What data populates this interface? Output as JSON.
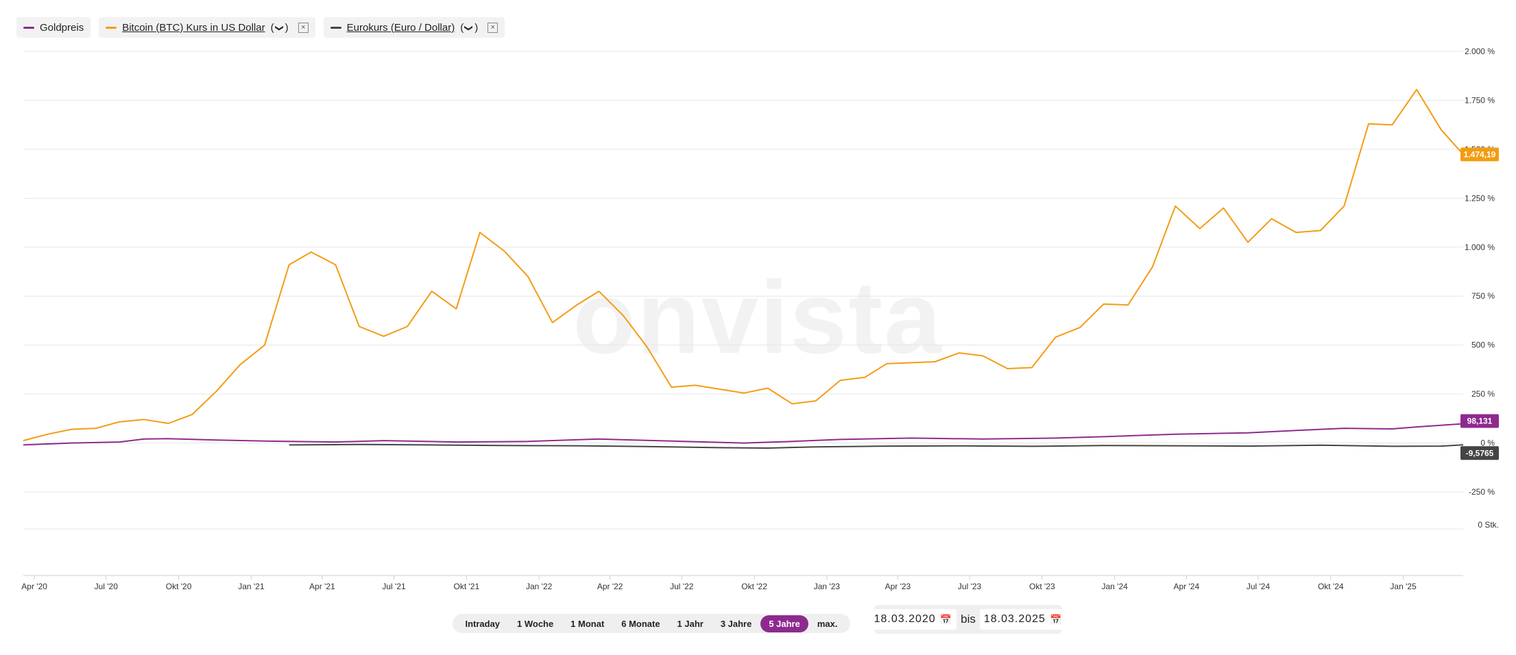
{
  "legend": [
    {
      "id": "gold",
      "label": "Goldpreis",
      "color": "#8e2a8e",
      "link": false,
      "removable": false
    },
    {
      "id": "btc",
      "label": "Bitcoin (BTC) Kurs in US Dollar",
      "color": "#f39c12",
      "link": true,
      "removable": true
    },
    {
      "id": "eur",
      "label": "Eurokurs (Euro / Dollar)",
      "color": "#444444",
      "link": true,
      "removable": true
    }
  ],
  "legend_paren_open": "(",
  "legend_paren_close": ")",
  "legend_chevron": "❯",
  "legend_close": "×",
  "watermark": "onvista",
  "ranges": [
    "Intraday",
    "1 Woche",
    "1 Monat",
    "6 Monate",
    "1 Jahr",
    "3 Jahre",
    "5 Jahre",
    "max."
  ],
  "active_range": "5 Jahre",
  "date_from": "18.03.2020",
  "date_to": "18.03.2025",
  "date_sep": "bis",
  "chart_data": {
    "type": "line",
    "y_unit": "%",
    "ylim": [
      -250,
      2000
    ],
    "y_ticks": [
      {
        "v": 2000,
        "label": "2.000 %"
      },
      {
        "v": 1750,
        "label": "1.750 %"
      },
      {
        "v": 1500,
        "label": "1.500 %"
      },
      {
        "v": 1250,
        "label": "1.250 %"
      },
      {
        "v": 1000,
        "label": "1.000 %"
      },
      {
        "v": 750,
        "label": "750 %"
      },
      {
        "v": 500,
        "label": "500 %"
      },
      {
        "v": 250,
        "label": "250 %"
      },
      {
        "v": 0,
        "label": "0 %"
      },
      {
        "v": -250,
        "label": "-250 %"
      }
    ],
    "volume_label": "0 Stk.",
    "xlim": [
      "2020-03-18",
      "2025-03-18"
    ],
    "x_ticks": [
      {
        "date": "2020-04-01",
        "label": "Apr '20"
      },
      {
        "date": "2020-07-01",
        "label": "Jul '20"
      },
      {
        "date": "2020-10-01",
        "label": "Okt '20"
      },
      {
        "date": "2021-01-01",
        "label": "Jan '21"
      },
      {
        "date": "2021-04-01",
        "label": "Apr '21"
      },
      {
        "date": "2021-07-01",
        "label": "Jul '21"
      },
      {
        "date": "2021-10-01",
        "label": "Okt '21"
      },
      {
        "date": "2022-01-01",
        "label": "Jan '22"
      },
      {
        "date": "2022-04-01",
        "label": "Apr '22"
      },
      {
        "date": "2022-07-01",
        "label": "Jul '22"
      },
      {
        "date": "2022-10-01",
        "label": "Okt '22"
      },
      {
        "date": "2023-01-01",
        "label": "Jan '23"
      },
      {
        "date": "2023-04-01",
        "label": "Apr '23"
      },
      {
        "date": "2023-07-01",
        "label": "Jul '23"
      },
      {
        "date": "2023-10-01",
        "label": "Okt '23"
      },
      {
        "date": "2024-01-01",
        "label": "Jan '24"
      },
      {
        "date": "2024-04-01",
        "label": "Apr '24"
      },
      {
        "date": "2024-07-01",
        "label": "Jul '24"
      },
      {
        "date": "2024-10-01",
        "label": "Okt '24"
      },
      {
        "date": "2025-01-01",
        "label": "Jan '25"
      }
    ],
    "series": [
      {
        "id": "btc",
        "name": "Bitcoin (BTC) Kurs in US Dollar",
        "color": "#f39c12",
        "last_label": "1.474,19",
        "points": [
          [
            "2020-03-18",
            12
          ],
          [
            "2020-04-18",
            45
          ],
          [
            "2020-05-18",
            70
          ],
          [
            "2020-06-18",
            75
          ],
          [
            "2020-07-18",
            108
          ],
          [
            "2020-08-18",
            120
          ],
          [
            "2020-09-18",
            100
          ],
          [
            "2020-10-18",
            145
          ],
          [
            "2020-11-18",
            265
          ],
          [
            "2020-12-18",
            400
          ],
          [
            "2021-01-18",
            500
          ],
          [
            "2021-02-18",
            910
          ],
          [
            "2021-03-18",
            975
          ],
          [
            "2021-04-18",
            910
          ],
          [
            "2021-05-18",
            595
          ],
          [
            "2021-06-18",
            545
          ],
          [
            "2021-07-18",
            595
          ],
          [
            "2021-08-18",
            775
          ],
          [
            "2021-09-18",
            685
          ],
          [
            "2021-10-18",
            1075
          ],
          [
            "2021-11-18",
            980
          ],
          [
            "2021-12-18",
            850
          ],
          [
            "2022-01-18",
            615
          ],
          [
            "2022-02-18",
            705
          ],
          [
            "2022-03-18",
            775
          ],
          [
            "2022-04-18",
            650
          ],
          [
            "2022-05-18",
            490
          ],
          [
            "2022-06-18",
            285
          ],
          [
            "2022-07-18",
            295
          ],
          [
            "2022-08-18",
            275
          ],
          [
            "2022-09-18",
            255
          ],
          [
            "2022-10-18",
            280
          ],
          [
            "2022-11-18",
            200
          ],
          [
            "2022-12-18",
            215
          ],
          [
            "2023-01-18",
            320
          ],
          [
            "2023-02-18",
            335
          ],
          [
            "2023-03-18",
            405
          ],
          [
            "2023-04-18",
            410
          ],
          [
            "2023-05-18",
            415
          ],
          [
            "2023-06-18",
            460
          ],
          [
            "2023-07-18",
            445
          ],
          [
            "2023-08-18",
            380
          ],
          [
            "2023-09-18",
            385
          ],
          [
            "2023-10-18",
            540
          ],
          [
            "2023-11-18",
            590
          ],
          [
            "2023-12-18",
            710
          ],
          [
            "2024-01-18",
            705
          ],
          [
            "2024-02-18",
            900
          ],
          [
            "2024-03-18",
            1210
          ],
          [
            "2024-04-18",
            1095
          ],
          [
            "2024-05-18",
            1200
          ],
          [
            "2024-06-18",
            1025
          ],
          [
            "2024-07-18",
            1145
          ],
          [
            "2024-08-18",
            1075
          ],
          [
            "2024-09-18",
            1085
          ],
          [
            "2024-10-18",
            1210
          ],
          [
            "2024-11-18",
            1630
          ],
          [
            "2024-12-18",
            1625
          ],
          [
            "2025-01-18",
            1805
          ],
          [
            "2025-02-18",
            1600
          ],
          [
            "2025-03-18",
            1474
          ]
        ]
      },
      {
        "id": "gold",
        "name": "Goldpreis",
        "color": "#8e2a8e",
        "last_label": "98,131",
        "points": [
          [
            "2020-03-18",
            -10
          ],
          [
            "2020-05-18",
            0
          ],
          [
            "2020-07-18",
            5
          ],
          [
            "2020-08-18",
            20
          ],
          [
            "2020-09-18",
            22
          ],
          [
            "2020-11-18",
            15
          ],
          [
            "2021-01-18",
            10
          ],
          [
            "2021-04-18",
            5
          ],
          [
            "2021-06-18",
            12
          ],
          [
            "2021-09-18",
            5
          ],
          [
            "2021-12-18",
            8
          ],
          [
            "2022-03-18",
            20
          ],
          [
            "2022-06-18",
            10
          ],
          [
            "2022-09-18",
            0
          ],
          [
            "2022-11-18",
            8
          ],
          [
            "2023-01-18",
            18
          ],
          [
            "2023-04-18",
            25
          ],
          [
            "2023-07-18",
            20
          ],
          [
            "2023-10-18",
            25
          ],
          [
            "2023-12-18",
            32
          ],
          [
            "2024-03-18",
            45
          ],
          [
            "2024-06-18",
            52
          ],
          [
            "2024-09-18",
            70
          ],
          [
            "2024-10-18",
            75
          ],
          [
            "2024-12-18",
            72
          ],
          [
            "2025-01-18",
            82
          ],
          [
            "2025-03-18",
            98
          ]
        ]
      },
      {
        "id": "eur",
        "name": "Eurokurs (Euro / Dollar)",
        "color": "#444444",
        "last_label": "-9,5765",
        "points": [
          [
            "2021-02-18",
            -10
          ],
          [
            "2021-05-18",
            -8
          ],
          [
            "2021-08-18",
            -10
          ],
          [
            "2021-11-18",
            -13
          ],
          [
            "2022-02-18",
            -14
          ],
          [
            "2022-05-18",
            -18
          ],
          [
            "2022-08-18",
            -24
          ],
          [
            "2022-10-18",
            -26
          ],
          [
            "2022-12-18",
            -20
          ],
          [
            "2023-03-18",
            -16
          ],
          [
            "2023-06-18",
            -15
          ],
          [
            "2023-09-18",
            -17
          ],
          [
            "2023-12-18",
            -13
          ],
          [
            "2024-03-18",
            -14
          ],
          [
            "2024-06-18",
            -16
          ],
          [
            "2024-09-18",
            -11
          ],
          [
            "2024-12-18",
            -17
          ],
          [
            "2025-02-18",
            -16
          ],
          [
            "2025-03-18",
            -9.6
          ]
        ]
      }
    ]
  }
}
